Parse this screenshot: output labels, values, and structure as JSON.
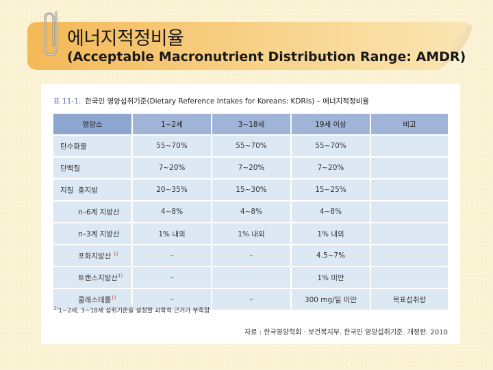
{
  "header": {
    "title_ko": "에너지적정비율",
    "title_en": "(Acceptable Macronutrient Distribution Range: AMDR)"
  },
  "caption": {
    "number": "표 11-1.",
    "text": "한국인 영양섭취기준(Dietary Reference Intakes for Koreans: KDRIs) – 에너지적정비율"
  },
  "table": {
    "headers": [
      "영양소",
      "1~2세",
      "3~18세",
      "19세 이상",
      "비고"
    ],
    "rows": [
      {
        "name": "탄수화물",
        "sup": "",
        "values": [
          "55~70%",
          "55~70%",
          "55~70%",
          ""
        ]
      },
      {
        "name": "단백질",
        "sup": "",
        "values": [
          "7~20%",
          "7~20%",
          "7~20%",
          ""
        ]
      },
      {
        "name": "지질  총지방",
        "sup": "",
        "values": [
          "20~35%",
          "15~30%",
          "15~25%",
          ""
        ]
      },
      {
        "name": "n–6계 지방산",
        "sup": "",
        "values": [
          "4~8%",
          "4~8%",
          "4~8%",
          ""
        ]
      },
      {
        "name": "n–3계 지방산",
        "sup": "",
        "values": [
          "1% 내외",
          "1% 내외",
          "1% 내외",
          ""
        ]
      },
      {
        "name": "포화지방산",
        "sup": "1)",
        "values": [
          "–",
          "–",
          "4.5~7%",
          ""
        ]
      },
      {
        "name": "트랜스지방산",
        "sup": "1)",
        "values": [
          "–",
          "",
          "1% 미만",
          ""
        ]
      },
      {
        "name": "콜레스테롤",
        "sup": "1)",
        "values": [
          "–",
          "–",
          "300 mg/일 미만",
          "목표섭취량"
        ]
      }
    ]
  },
  "footnote": {
    "mark": "1)",
    "text": "1~2세, 3~18세 섭취기준을 설정할 과학적 근거가 부족함"
  },
  "source": "자료 : 한국영양학회 · 보건복지부. 한국인 영양섭취기준. 개정판. 2010",
  "colors": {
    "background": "#fbf3d6",
    "banner": "#f6c97b",
    "header_cell": "#9fb4d7",
    "body_cell": "#dde8f5"
  }
}
